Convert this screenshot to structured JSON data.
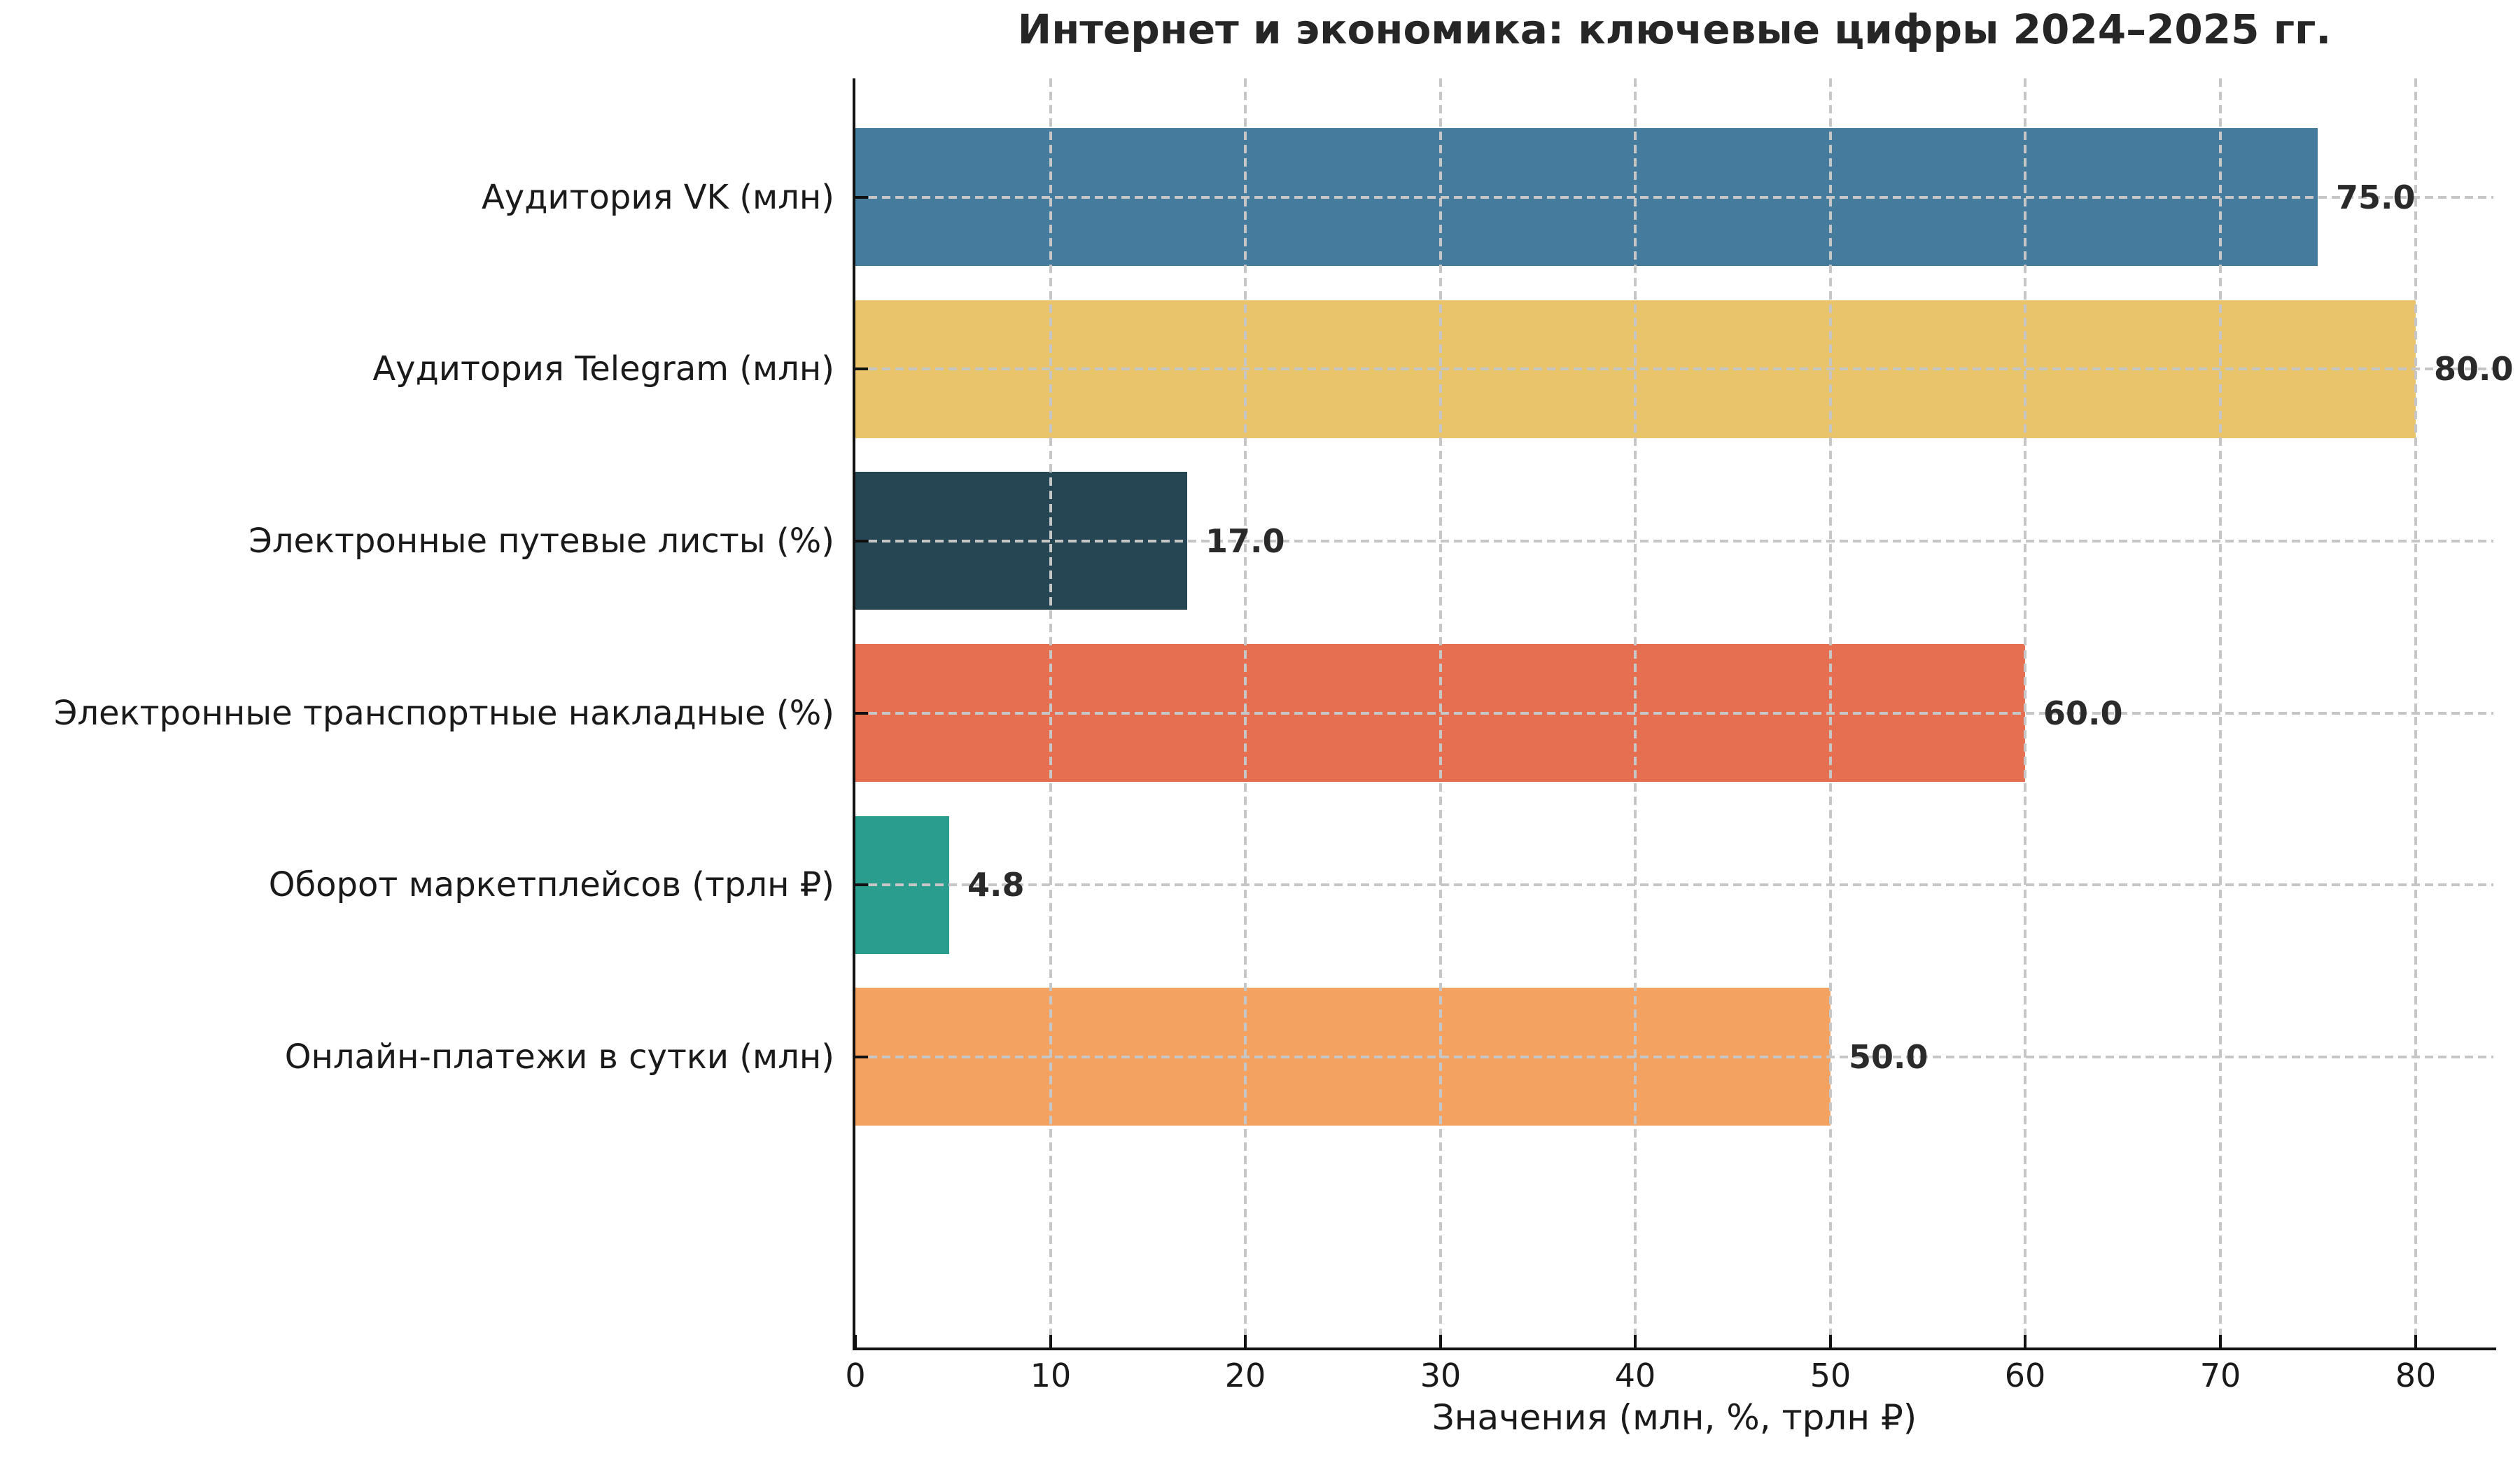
{
  "chart_data": {
    "type": "bar",
    "orientation": "horizontal",
    "title": "Интернет и экономика: ключевые цифры 2024–2025 гг.",
    "categories": [
      "Аудитория VK (млн)",
      "Аудитория Telegram (млн)",
      "Электронные путевые листы (%)",
      "Электронные транспортные накладные (%)",
      "Оборот маркетплейсов (трлн ₽)",
      "Онлайн-платежи в сутки (млн)"
    ],
    "values": [
      75.0,
      80.0,
      17.0,
      60.0,
      4.8,
      50.0
    ],
    "value_labels": [
      "75.0",
      "80.0",
      "17.0",
      "60.0",
      "4.8",
      "50.0"
    ],
    "bar_colors": [
      "#457B9D",
      "#E9C46A",
      "#264653",
      "#E76F51",
      "#2A9D8F",
      "#F4A261"
    ],
    "xlabel": "Значения (млн, %, трлн ₽)",
    "ylabel": "",
    "xlim": [
      0,
      84
    ],
    "xticks": [
      0,
      10,
      20,
      30,
      40,
      50,
      60,
      70,
      80
    ],
    "xtick_labels": [
      "0",
      "10",
      "20",
      "30",
      "40",
      "50",
      "60",
      "70",
      "80"
    ],
    "grid": true,
    "grid_style": "dashed",
    "grid_color": "#c6c6c6",
    "legend": null,
    "background": "#ffffff",
    "text_color": "#1a1a1a"
  }
}
